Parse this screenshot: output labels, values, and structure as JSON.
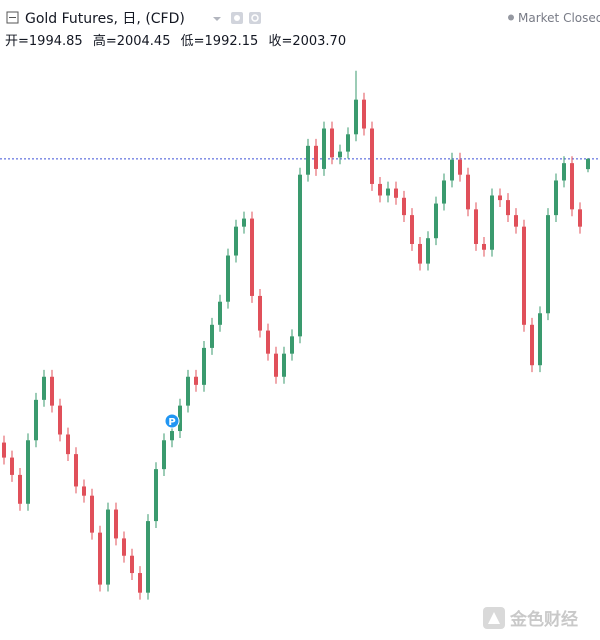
{
  "chart_data": {
    "type": "candlestick",
    "title": "Gold Futures, 日, (CFD)",
    "status": "Market Closed",
    "ohlc_labels": [
      "开=",
      "高=",
      "低=",
      "收="
    ],
    "last_close_label": "2003.70",
    "marker_label": "P",
    "watermark": "金色财经",
    "up_color": "#3a9a6e",
    "down_color": "#e0505a",
    "price_line_color": "#3f51d6",
    "last_price_line": true,
    "ylim": [
      1613,
      2098
    ],
    "open": [
      1758,
      1745,
      1730,
      1705,
      1760,
      1795,
      1815,
      1790,
      1765,
      1748,
      1720,
      1712,
      1680,
      1635,
      1700,
      1675,
      1660,
      1645,
      1628,
      1690,
      1735,
      1760,
      1768,
      1790,
      1815,
      1808,
      1840,
      1860,
      1880,
      1920,
      1945,
      1952,
      1885,
      1855,
      1835,
      1815,
      1835,
      1850,
      1990,
      2015,
      1995,
      2030,
      2005,
      2010,
      2025,
      2055,
      2030,
      1982,
      1972,
      1978,
      1970,
      1955,
      1930,
      1913,
      1935,
      1965,
      1985,
      2003,
      1990,
      1960,
      1930,
      1925,
      1972,
      1968,
      1955,
      1945,
      1860,
      1825,
      1870,
      1955,
      1985,
      2000,
      1960,
      1994.85
    ],
    "high": [
      1764,
      1751,
      1736,
      1766,
      1801,
      1821,
      1821,
      1796,
      1771,
      1754,
      1726,
      1718,
      1686,
      1706,
      1706,
      1681,
      1666,
      1651,
      1696,
      1741,
      1766,
      1774,
      1796,
      1821,
      1821,
      1846,
      1866,
      1886,
      1926,
      1951,
      1958,
      1958,
      1891,
      1861,
      1841,
      1841,
      1856,
      1996,
      2021,
      2021,
      2036,
      2036,
      2016,
      2031,
      2080,
      2061,
      2036,
      1988,
      1984,
      1984,
      1976,
      1961,
      1936,
      1941,
      1971,
      1991,
      2009,
      2009,
      1996,
      1966,
      1936,
      1978,
      1978,
      1974,
      1961,
      1951,
      1866,
      1876,
      1961,
      1991,
      2006,
      2006,
      1966,
      2004.45
    ],
    "low": [
      1739,
      1724,
      1699,
      1699,
      1754,
      1789,
      1784,
      1759,
      1742,
      1714,
      1706,
      1674,
      1629,
      1629,
      1669,
      1654,
      1639,
      1622,
      1622,
      1684,
      1729,
      1754,
      1762,
      1784,
      1802,
      1802,
      1834,
      1854,
      1874,
      1914,
      1939,
      1879,
      1849,
      1829,
      1809,
      1809,
      1829,
      1844,
      1984,
      1989,
      1989,
      1999,
      1999,
      2004,
      2019,
      2024,
      1976,
      1966,
      1966,
      1964,
      1949,
      1924,
      1907,
      1907,
      1929,
      1959,
      1979,
      1984,
      1954,
      1924,
      1919,
      1919,
      1962,
      1949,
      1939,
      1854,
      1819,
      1819,
      1864,
      1949,
      1979,
      1954,
      1939,
      1992.15
    ],
    "close": [
      1745,
      1730,
      1705,
      1760,
      1795,
      1815,
      1790,
      1765,
      1748,
      1720,
      1712,
      1680,
      1635,
      1700,
      1675,
      1660,
      1645,
      1628,
      1690,
      1735,
      1760,
      1768,
      1790,
      1815,
      1808,
      1840,
      1860,
      1880,
      1920,
      1945,
      1952,
      1885,
      1855,
      1835,
      1815,
      1835,
      1850,
      1990,
      2015,
      1995,
      2030,
      2005,
      2010,
      2025,
      2055,
      2030,
      1982,
      1972,
      1978,
      1970,
      1955,
      1930,
      1913,
      1935,
      1965,
      1985,
      2003,
      1990,
      1960,
      1930,
      1925,
      1972,
      1968,
      1955,
      1945,
      1860,
      1825,
      1870,
      1955,
      1985,
      2000,
      1960,
      1945,
      2003.7
    ]
  }
}
